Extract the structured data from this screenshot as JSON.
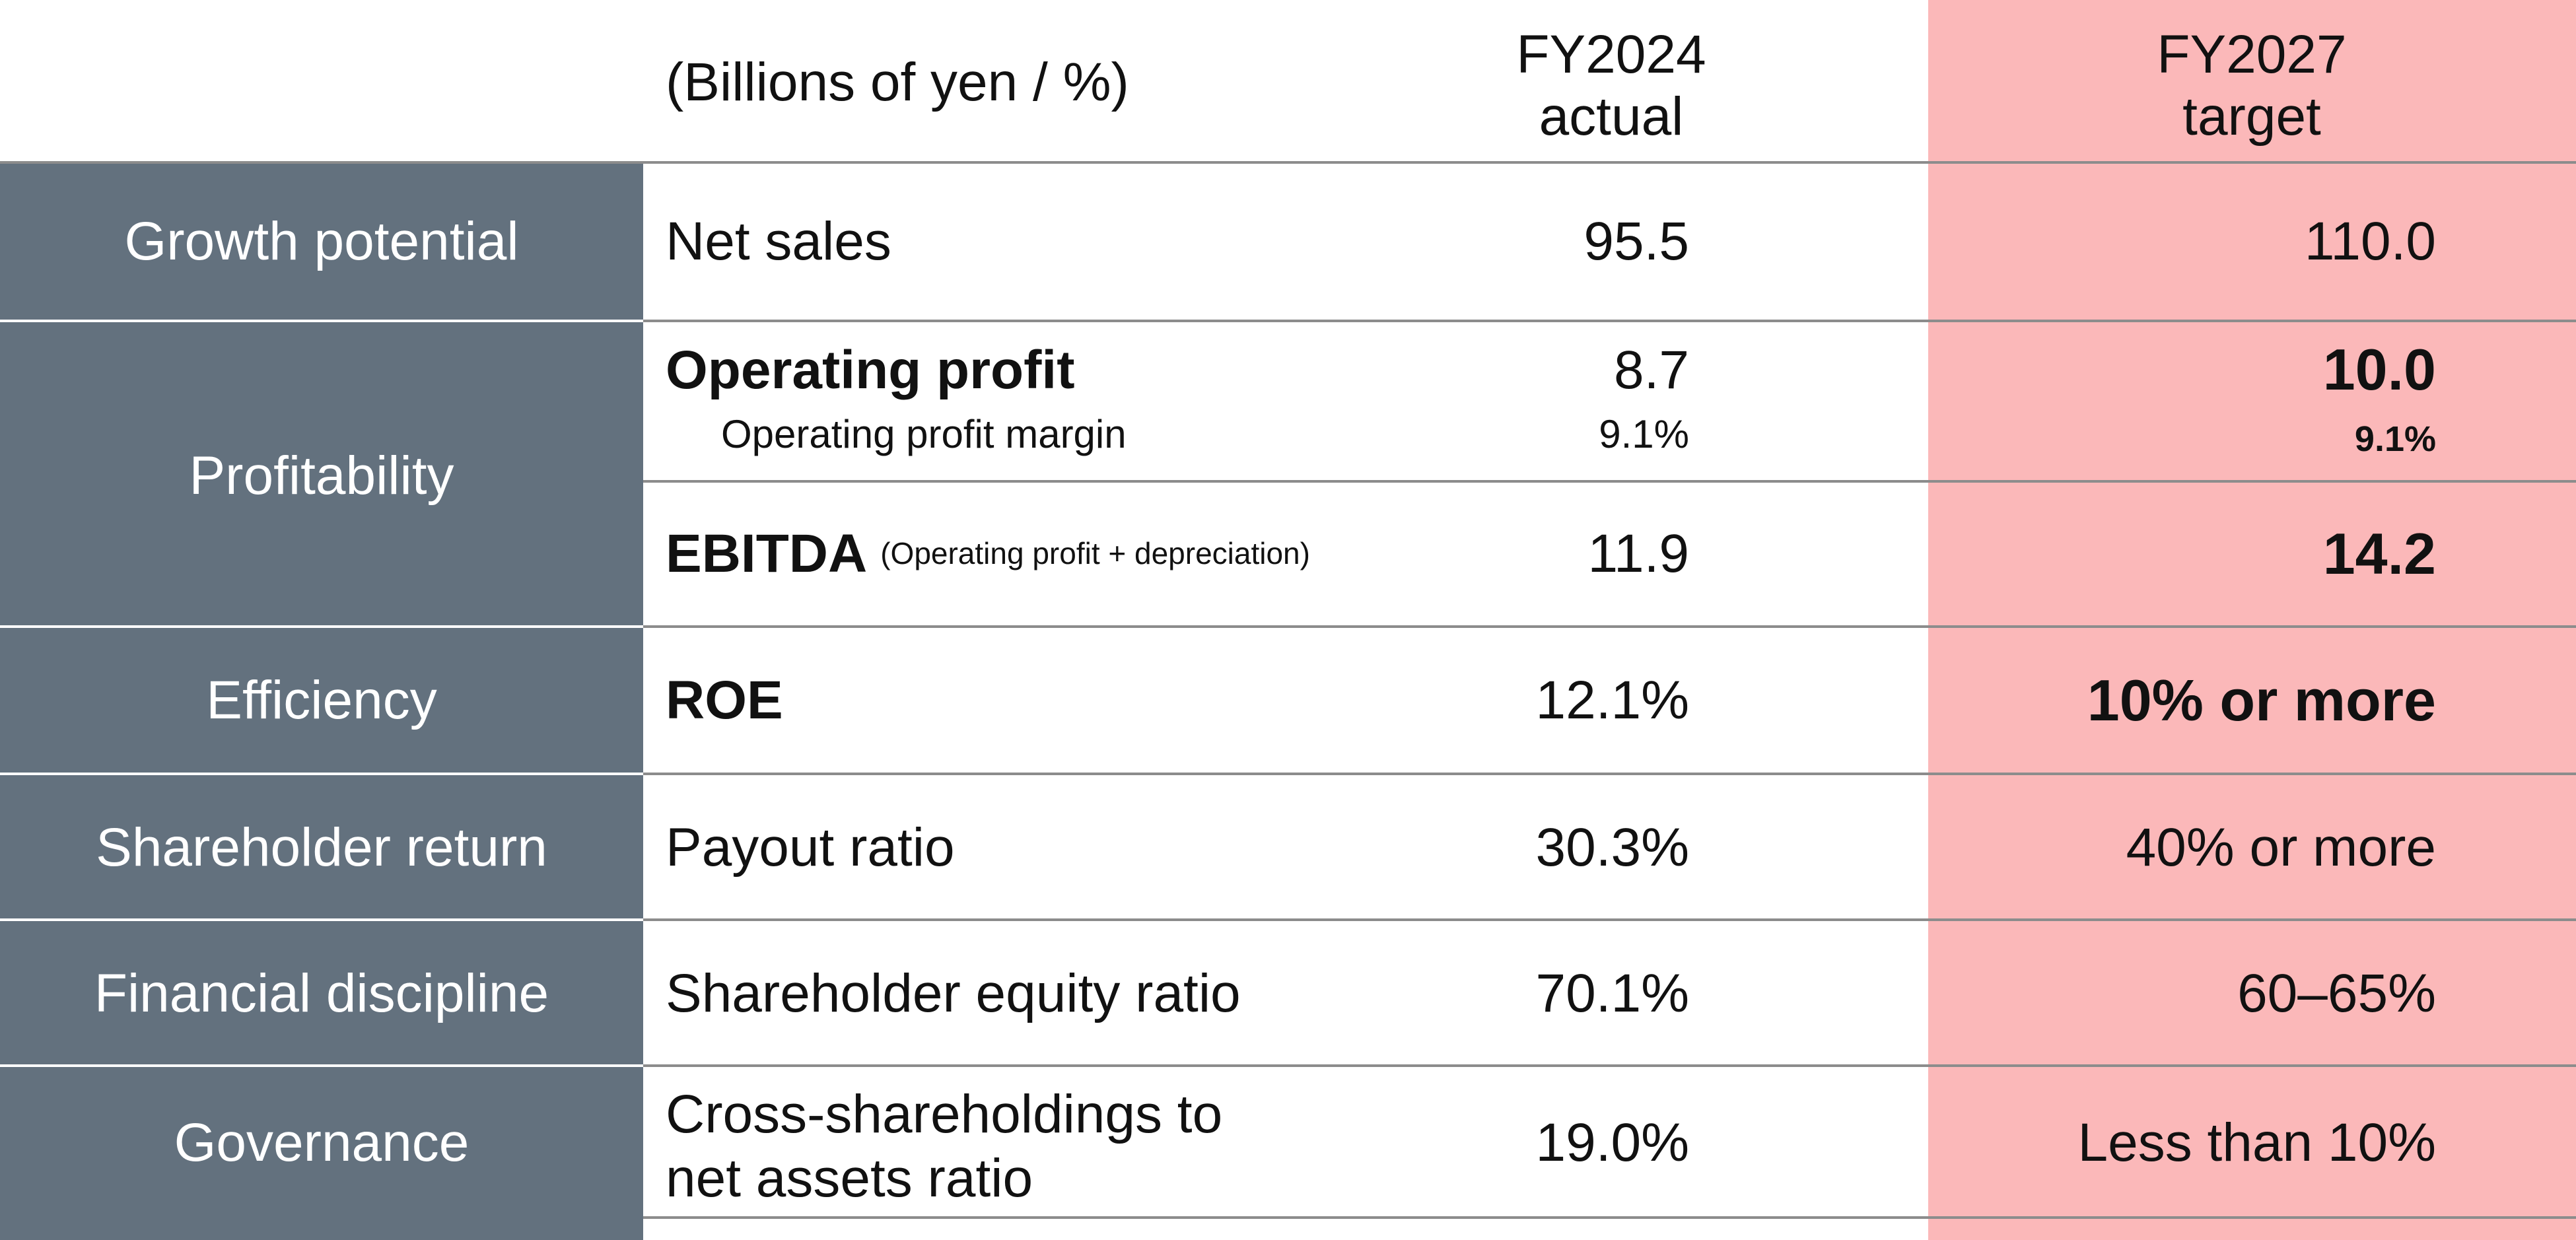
{
  "header": {
    "units": "(Billions of yen / %)",
    "actual_line1": "FY2024",
    "actual_line2": "actual",
    "target_line1": "FY2027",
    "target_line2": "target"
  },
  "rows": {
    "growth": {
      "category": "Growth potential",
      "metric": "Net sales",
      "actual": "95.5",
      "target": "110.0"
    },
    "profitability": {
      "category": "Profitability",
      "operating_profit": {
        "metric": "Operating profit",
        "actual": "8.7",
        "target": "10.0"
      },
      "operating_margin": {
        "metric": "Operating profit margin",
        "actual": "9.1%",
        "target": "9.1%"
      },
      "ebitda": {
        "metric": "EBITDA",
        "note": "(Operating profit + depreciation)",
        "actual": "11.9",
        "target": "14.2"
      }
    },
    "efficiency": {
      "category": "Efficiency",
      "metric": "ROE",
      "actual": "12.1%",
      "target": "10% or more"
    },
    "shareholder_return": {
      "category": "Shareholder return",
      "metric": "Payout ratio",
      "actual": "30.3%",
      "target": "40% or more"
    },
    "financial_discipline": {
      "category": "Financial discipline",
      "metric": "Shareholder equity ratio",
      "actual": "70.1%",
      "target": "60–65%"
    },
    "governance": {
      "category": "Governance",
      "metric_line1": "Cross-shareholdings to",
      "metric_line2": "net assets ratio",
      "actual": "19.0%",
      "target": "Less than 10%"
    }
  },
  "colors": {
    "category_bg": "#63717e",
    "target_bg": "#fbb8b9",
    "rule": "#8c8c8c"
  }
}
